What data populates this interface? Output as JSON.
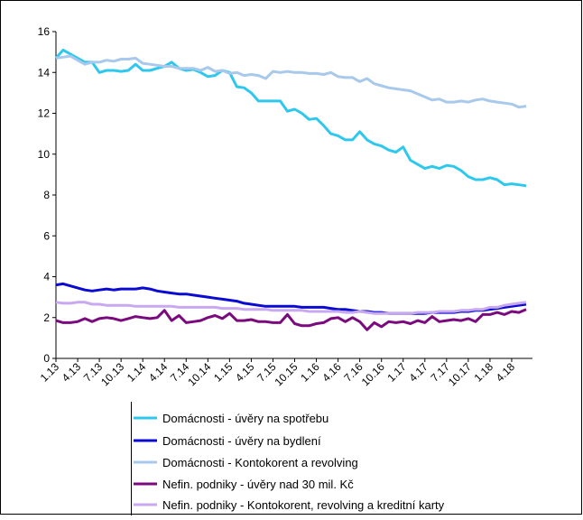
{
  "chart_data": {
    "type": "line",
    "categories": [
      "1.13",
      null,
      null,
      "4.13",
      null,
      null,
      "7.13",
      null,
      null,
      "10.13",
      null,
      null,
      "1.14",
      null,
      null,
      "4.14",
      null,
      null,
      "7.14",
      null,
      null,
      "10.14",
      null,
      null,
      "1.15",
      null,
      null,
      "4.15",
      null,
      null,
      "7.15",
      null,
      null,
      "10.15",
      null,
      null,
      "1.16",
      null,
      null,
      "4.16",
      null,
      null,
      "7.16",
      null,
      null,
      "10.16",
      null,
      null,
      "1.17",
      null,
      null,
      "4.17",
      null,
      null,
      "7.17",
      null,
      null,
      "10.17",
      null,
      null,
      "1.18",
      null,
      null,
      "4.18",
      null,
      null
    ],
    "ylim": [
      0,
      16
    ],
    "yticks": [
      0,
      2,
      4,
      6,
      8,
      10,
      12,
      14,
      16
    ],
    "grid": false,
    "series": [
      {
        "name": "Domácnosti - úvěry na spotřebu",
        "color": "#2ec8ee",
        "values": [
          14.7,
          15.1,
          14.9,
          14.7,
          14.5,
          14.5,
          14.0,
          14.1,
          14.1,
          14.05,
          14.1,
          14.4,
          14.1,
          14.1,
          14.2,
          14.3,
          14.5,
          14.2,
          14.1,
          14.15,
          14.0,
          13.8,
          13.85,
          14.1,
          14.0,
          13.3,
          13.25,
          13.0,
          12.6,
          12.6,
          12.6,
          12.6,
          12.1,
          12.2,
          12.0,
          11.7,
          11.75,
          11.4,
          11.0,
          10.9,
          10.7,
          10.7,
          11.1,
          10.7,
          10.5,
          10.4,
          10.2,
          10.1,
          10.35,
          9.7,
          9.5,
          9.3,
          9.4,
          9.3,
          9.45,
          9.4,
          9.2,
          8.9,
          8.75,
          8.75,
          8.85,
          8.75,
          8.5,
          8.55,
          8.5,
          8.45
        ]
      },
      {
        "name": "Domácnosti - úvěry na bydlení",
        "color": "#0a0ad2",
        "values": [
          3.6,
          3.65,
          3.55,
          3.45,
          3.35,
          3.3,
          3.35,
          3.4,
          3.35,
          3.4,
          3.4,
          3.4,
          3.45,
          3.4,
          3.3,
          3.25,
          3.2,
          3.15,
          3.15,
          3.1,
          3.05,
          3.0,
          2.95,
          2.9,
          2.85,
          2.8,
          2.7,
          2.65,
          2.6,
          2.55,
          2.55,
          2.55,
          2.55,
          2.55,
          2.5,
          2.5,
          2.5,
          2.5,
          2.45,
          2.4,
          2.4,
          2.35,
          2.3,
          2.3,
          2.25,
          2.25,
          2.2,
          2.2,
          2.2,
          2.2,
          2.2,
          2.2,
          2.25,
          2.25,
          2.25,
          2.25,
          2.3,
          2.3,
          2.35,
          2.35,
          2.4,
          2.45,
          2.5,
          2.55,
          2.6,
          2.65
        ]
      },
      {
        "name": "Domácnosti - Kontokorent a revolving",
        "color": "#a8c8ec",
        "values": [
          14.7,
          14.75,
          14.8,
          14.6,
          14.4,
          14.5,
          14.5,
          14.6,
          14.55,
          14.65,
          14.65,
          14.7,
          14.45,
          14.4,
          14.35,
          14.3,
          14.3,
          14.2,
          14.2,
          14.2,
          14.1,
          14.25,
          14.05,
          14.1,
          13.95,
          14.0,
          13.85,
          13.9,
          13.85,
          13.7,
          14.05,
          14.0,
          14.05,
          14.0,
          14.0,
          13.95,
          13.95,
          13.9,
          14.0,
          13.8,
          13.75,
          13.75,
          13.55,
          13.7,
          13.45,
          13.35,
          13.25,
          13.2,
          13.15,
          13.1,
          12.95,
          12.8,
          12.65,
          12.7,
          12.55,
          12.55,
          12.6,
          12.55,
          12.65,
          12.7,
          12.6,
          12.55,
          12.5,
          12.45,
          12.3,
          12.35
        ]
      },
      {
        "name": "Nefin. podniky - úvěry nad 30 mil. Kč",
        "color": "#7a0a7e",
        "values": [
          1.85,
          1.75,
          1.75,
          1.8,
          1.95,
          1.8,
          1.95,
          2.0,
          1.95,
          1.85,
          1.95,
          2.05,
          2.0,
          1.95,
          2.0,
          2.35,
          1.85,
          2.1,
          1.75,
          1.8,
          1.85,
          2.0,
          2.1,
          1.95,
          2.2,
          1.85,
          1.85,
          1.9,
          1.8,
          1.8,
          1.75,
          1.75,
          2.15,
          1.7,
          1.6,
          1.6,
          1.7,
          1.75,
          1.95,
          2.0,
          1.8,
          2.0,
          1.8,
          1.4,
          1.75,
          1.55,
          1.8,
          1.75,
          1.8,
          1.7,
          1.85,
          1.75,
          2.05,
          1.8,
          1.85,
          1.9,
          1.85,
          1.95,
          1.8,
          2.15,
          2.15,
          2.25,
          2.15,
          2.3,
          2.25,
          2.4
        ]
      },
      {
        "name": "Nefin. podniky - Kontokorent, revolving a kreditní karty",
        "color": "#c8a8f0",
        "values": [
          2.75,
          2.7,
          2.7,
          2.75,
          2.75,
          2.65,
          2.65,
          2.6,
          2.6,
          2.6,
          2.6,
          2.55,
          2.55,
          2.55,
          2.55,
          2.55,
          2.55,
          2.5,
          2.5,
          2.5,
          2.5,
          2.5,
          2.5,
          2.45,
          2.45,
          2.45,
          2.4,
          2.4,
          2.4,
          2.4,
          2.35,
          2.35,
          2.35,
          2.35,
          2.35,
          2.3,
          2.3,
          2.3,
          2.3,
          2.3,
          2.25,
          2.25,
          2.3,
          2.25,
          2.2,
          2.2,
          2.2,
          2.2,
          2.2,
          2.2,
          2.25,
          2.25,
          2.25,
          2.3,
          2.3,
          2.3,
          2.35,
          2.35,
          2.4,
          2.4,
          2.5,
          2.5,
          2.6,
          2.65,
          2.7,
          2.75
        ]
      }
    ]
  }
}
